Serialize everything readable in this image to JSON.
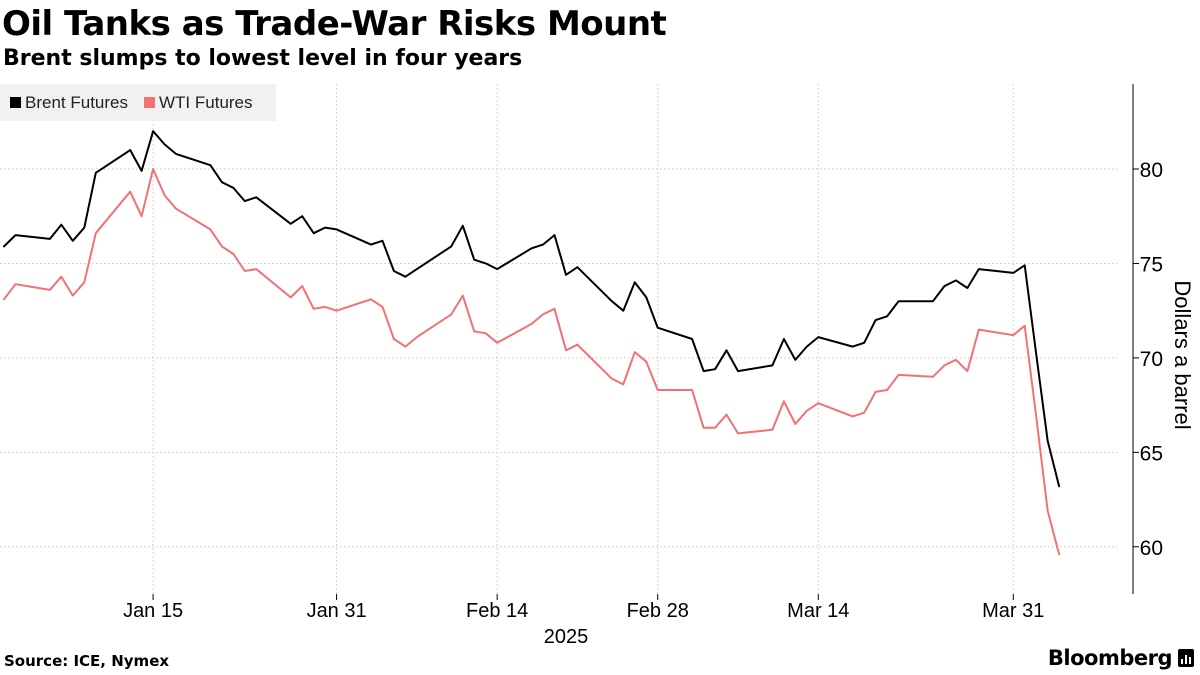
{
  "header": {
    "title": "Oil Tanks as Trade-War Risks Mount",
    "subtitle": "Brent slumps to lowest level in four years"
  },
  "legend": [
    {
      "label": "Brent Futures",
      "color": "#000000"
    },
    {
      "label": "WTI Futures",
      "color": "#f27174"
    }
  ],
  "footer": {
    "source": "Source: ICE, Nymex",
    "brand": "Bloomberg",
    "brand_icon": "bloomberg-terminal-icon"
  },
  "chart_data": {
    "type": "line",
    "ylabel": "Dollars a barrel",
    "ylim": [
      57.5,
      84.5
    ],
    "yticks": [
      60,
      65,
      70,
      75,
      80
    ],
    "xlim": [
      "2025-01-02",
      "2025-04-08"
    ],
    "xticks": [
      {
        "date": "2025-01-15",
        "label": "Jan 15"
      },
      {
        "date": "2025-01-31",
        "label": "Jan 31"
      },
      {
        "date": "2025-02-14",
        "label": "Feb 14"
      },
      {
        "date": "2025-02-28",
        "label": "Feb 28"
      },
      {
        "date": "2025-03-14",
        "label": "Mar 14"
      },
      {
        "date": "2025-03-31",
        "label": "Mar 31"
      }
    ],
    "year_label": "2025",
    "grid": "dotted",
    "legend_position": "top-left",
    "x": [
      "2025-01-02",
      "2025-01-03",
      "2025-01-06",
      "2025-01-07",
      "2025-01-08",
      "2025-01-09",
      "2025-01-10",
      "2025-01-13",
      "2025-01-14",
      "2025-01-15",
      "2025-01-16",
      "2025-01-17",
      "2025-01-20",
      "2025-01-21",
      "2025-01-22",
      "2025-01-23",
      "2025-01-24",
      "2025-01-27",
      "2025-01-28",
      "2025-01-29",
      "2025-01-30",
      "2025-01-31",
      "2025-02-03",
      "2025-02-04",
      "2025-02-05",
      "2025-02-06",
      "2025-02-07",
      "2025-02-10",
      "2025-02-11",
      "2025-02-12",
      "2025-02-13",
      "2025-02-14",
      "2025-02-17",
      "2025-02-18",
      "2025-02-19",
      "2025-02-20",
      "2025-02-21",
      "2025-02-24",
      "2025-02-25",
      "2025-02-26",
      "2025-02-27",
      "2025-02-28",
      "2025-03-03",
      "2025-03-04",
      "2025-03-05",
      "2025-03-06",
      "2025-03-07",
      "2025-03-10",
      "2025-03-11",
      "2025-03-12",
      "2025-03-13",
      "2025-03-14",
      "2025-03-17",
      "2025-03-18",
      "2025-03-19",
      "2025-03-20",
      "2025-03-21",
      "2025-03-24",
      "2025-03-25",
      "2025-03-26",
      "2025-03-27",
      "2025-03-28",
      "2025-03-31",
      "2025-04-01",
      "2025-04-02",
      "2025-04-03",
      "2025-04-04",
      "2025-04-07"
    ],
    "series": [
      {
        "name": "Brent Futures",
        "color": "#000000",
        "values": [
          75.9,
          76.5,
          76.3,
          77.05,
          76.2,
          76.9,
          79.8,
          81.0,
          79.9,
          82.0,
          81.3,
          80.8,
          80.2,
          79.3,
          79.0,
          78.3,
          78.5,
          77.1,
          77.5,
          76.6,
          76.9,
          76.8,
          76.0,
          76.2,
          74.6,
          74.3,
          74.7,
          75.9,
          77.0,
          75.2,
          75.0,
          74.7,
          75.8,
          76.0,
          76.5,
          74.4,
          74.8,
          73.0,
          72.5,
          74.0,
          73.2,
          71.6,
          71.0,
          69.3,
          69.4,
          70.4,
          69.3,
          69.6,
          71.0,
          69.9,
          70.6,
          71.1,
          70.6,
          70.8,
          72.0,
          72.2,
          73.0,
          73.0,
          73.8,
          74.1,
          73.7,
          74.7,
          74.5,
          74.9,
          70.2,
          65.6,
          63.2,
          null
        ]
      },
      {
        "name": "WTI Futures",
        "color": "#f27174",
        "values": [
          73.1,
          73.9,
          73.6,
          74.3,
          73.3,
          74.0,
          76.6,
          78.8,
          77.5,
          80.0,
          78.6,
          77.9,
          76.8,
          75.9,
          75.5,
          74.6,
          74.7,
          73.2,
          73.8,
          72.6,
          72.7,
          72.5,
          73.1,
          72.7,
          71.0,
          70.6,
          71.1,
          72.3,
          73.3,
          71.4,
          71.3,
          70.8,
          71.8,
          72.3,
          72.6,
          70.4,
          70.7,
          68.9,
          68.6,
          70.3,
          69.8,
          68.3,
          68.3,
          66.3,
          66.3,
          67.0,
          66.0,
          66.2,
          67.7,
          66.5,
          67.2,
          67.6,
          66.9,
          67.1,
          68.2,
          68.3,
          69.1,
          69.0,
          69.6,
          69.9,
          69.3,
          71.5,
          71.2,
          71.7,
          66.9,
          61.9,
          59.6,
          null
        ]
      }
    ]
  }
}
